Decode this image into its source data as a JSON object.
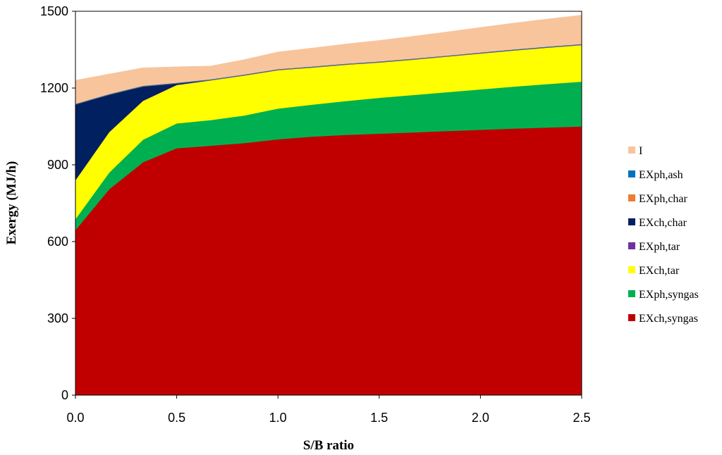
{
  "chart_data": {
    "type": "area",
    "stacked": true,
    "xlabel": "S/B ratio",
    "ylabel": "Exergy (MJ/h)",
    "xlim": [
      0,
      2.5
    ],
    "ylim": [
      0,
      1500
    ],
    "xticks": [
      "0.0",
      "0.5",
      "1.0",
      "1.5",
      "2.0",
      "2.5"
    ],
    "yticks": [
      "0",
      "300",
      "600",
      "900",
      "1200",
      "1500"
    ],
    "grid": false,
    "legend_position": "right",
    "x": [
      0,
      0.1667,
      0.3333,
      0.5,
      0.6667,
      0.8333,
      1.0,
      1.1667,
      1.3333,
      1.5,
      1.6667,
      1.8333,
      2.0,
      2.1667,
      2.3333,
      2.5
    ],
    "series": [
      {
        "name": "EXch,syngas",
        "color": "#c00000",
        "values": [
          645,
          805,
          910,
          965,
          975,
          985,
          1000,
          1010,
          1017,
          1022,
          1027,
          1032,
          1037,
          1042,
          1046,
          1050
        ]
      },
      {
        "name": "EXph,syngas",
        "color": "#00b050",
        "values": [
          43,
          65,
          88,
          97,
          100,
          108,
          120,
          125,
          132,
          140,
          146,
          152,
          158,
          164,
          170,
          175
        ]
      },
      {
        "name": "EXch,tar",
        "color": "#ffff00",
        "values": [
          152,
          158,
          152,
          150,
          155,
          156,
          150,
          145,
          142,
          138,
          138,
          139,
          140,
          141,
          142,
          143
        ]
      },
      {
        "name": "EXph,tar",
        "color": "#7030a0",
        "values": [
          1,
          1,
          1,
          1,
          1,
          1,
          1,
          1,
          1,
          1,
          1,
          1,
          1,
          1,
          1,
          1
        ]
      },
      {
        "name": "EXch,char",
        "color": "#002060",
        "values": [
          295,
          145,
          55,
          5,
          0,
          0,
          0,
          0,
          0,
          0,
          0,
          0,
          0,
          0,
          0,
          0
        ]
      },
      {
        "name": "EXph,char",
        "color": "#ed7d31",
        "values": [
          1,
          1,
          1,
          1,
          1,
          1,
          1,
          1,
          1,
          1,
          1,
          1,
          1,
          1,
          1,
          1
        ]
      },
      {
        "name": "EXph,ash",
        "color": "#0070c0",
        "values": [
          2,
          2,
          2,
          2,
          2,
          2,
          2,
          2,
          2,
          2,
          2,
          2,
          2,
          2,
          2,
          2
        ]
      },
      {
        "name": "I",
        "color": "#f8c49c",
        "values": [
          91,
          78,
          70,
          62,
          52,
          58,
          67,
          72,
          77,
          82,
          87,
          92,
          98,
          103,
          108,
          113
        ]
      }
    ],
    "legend_order": [
      "I",
      "EXph,ash",
      "EXph,char",
      "EXch,char",
      "EXph,tar",
      "EXch,tar",
      "EXph,syngas",
      "EXch,syngas"
    ]
  }
}
